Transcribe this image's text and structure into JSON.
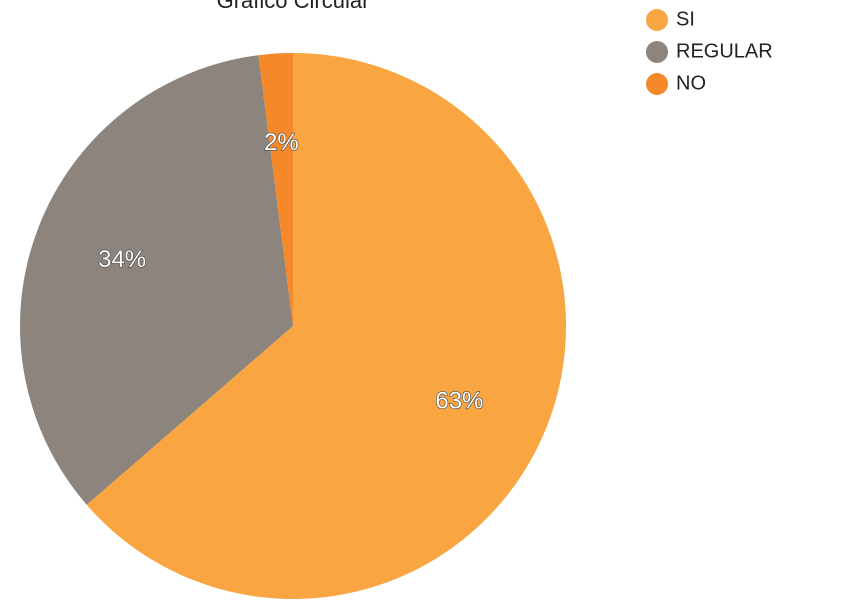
{
  "chart_data": {
    "type": "pie",
    "title": "Gráfico Circular",
    "categories": [
      "SI",
      "REGULAR",
      "NO"
    ],
    "values": [
      63,
      34,
      2
    ],
    "value_labels": [
      "63%",
      "34%",
      "2%"
    ],
    "colors": [
      "#f9a541",
      "#8c847d",
      "#f5892a"
    ],
    "legend": "top-right"
  }
}
